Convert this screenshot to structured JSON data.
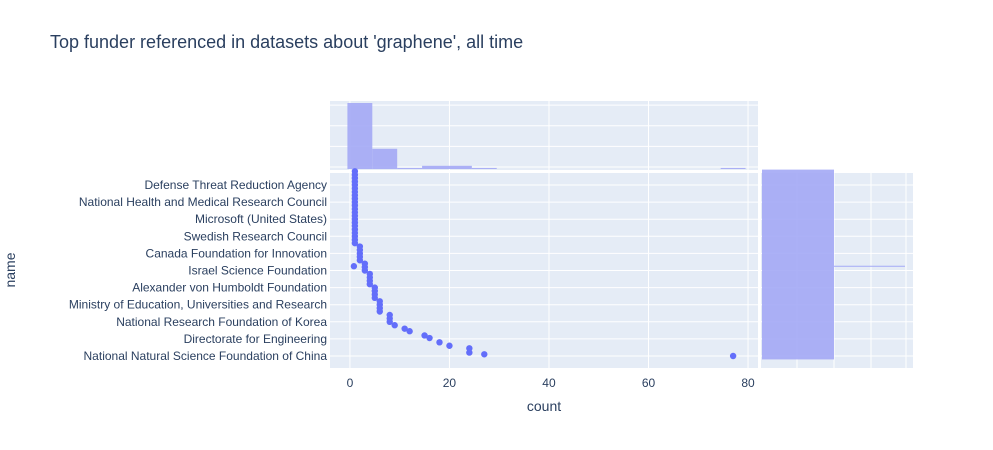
{
  "title": "Top funder referenced in datasets about 'graphene', all time",
  "colors": {
    "plot_bg": "#e5ecf6",
    "grid": "#ffffff",
    "marker": "#636efa",
    "hist": "#a3a9f5",
    "text": "#2a3f5f"
  },
  "chart_data": {
    "type": "scatter",
    "title": "Top funder referenced in datasets about 'graphene', all time",
    "xlabel": "count",
    "ylabel": "name",
    "xlim": [
      -4,
      82
    ],
    "x_ticks": [
      0,
      20,
      40,
      60,
      80
    ],
    "grid": true,
    "y_tick_labels": [
      "National Natural Science Foundation of China",
      "Directorate for Engineering",
      "National Research Foundation of Korea",
      "Ministry of Education, Universities and Research",
      "Alexander von Humboldt Foundation",
      "Israel Science Foundation",
      "Canada Foundation for Innovation",
      "Swedish Research Council",
      "Microsoft (United States)",
      "National Health and Medical Research Council",
      "Defense Threat Reduction Agency"
    ],
    "points": [
      {
        "x": 77,
        "y": 0
      },
      {
        "x": 27,
        "y": 0.1
      },
      {
        "x": 24,
        "y": 0.2
      },
      {
        "x": 24,
        "y": 0.45
      },
      {
        "x": 20,
        "y": 0.6
      },
      {
        "x": 18,
        "y": 0.8
      },
      {
        "x": 16,
        "y": 1.05
      },
      {
        "x": 15,
        "y": 1.2
      },
      {
        "x": 12,
        "y": 1.45
      },
      {
        "x": 11,
        "y": 1.6
      },
      {
        "x": 9,
        "y": 1.8
      },
      {
        "x": 8,
        "y": 2.0
      },
      {
        "x": 8,
        "y": 2.2
      },
      {
        "x": 8,
        "y": 2.4
      },
      {
        "x": 6,
        "y": 2.6
      },
      {
        "x": 6,
        "y": 2.8
      },
      {
        "x": 6,
        "y": 3.0
      },
      {
        "x": 6,
        "y": 3.2
      },
      {
        "x": 5,
        "y": 3.4
      },
      {
        "x": 5,
        "y": 3.6
      },
      {
        "x": 5,
        "y": 3.8
      },
      {
        "x": 5,
        "y": 4.0
      },
      {
        "x": 4,
        "y": 4.2
      },
      {
        "x": 4,
        "y": 4.4
      },
      {
        "x": 4,
        "y": 4.6
      },
      {
        "x": 4,
        "y": 4.8
      },
      {
        "x": 3,
        "y": 5.0
      },
      {
        "x": 3,
        "y": 5.2
      },
      {
        "x": 3,
        "y": 5.4
      },
      {
        "x": 0.8,
        "y": 5.25
      },
      {
        "x": 2,
        "y": 5.6
      },
      {
        "x": 2,
        "y": 5.8
      },
      {
        "x": 2,
        "y": 6.0
      },
      {
        "x": 2,
        "y": 6.2
      },
      {
        "x": 2,
        "y": 6.4
      },
      {
        "x": 1,
        "y": 6.6
      },
      {
        "x": 1,
        "y": 6.8
      },
      {
        "x": 1,
        "y": 7.0
      },
      {
        "x": 1,
        "y": 7.2
      },
      {
        "x": 1,
        "y": 7.4
      },
      {
        "x": 1,
        "y": 7.6
      },
      {
        "x": 1,
        "y": 7.8
      },
      {
        "x": 1,
        "y": 8.0
      },
      {
        "x": 1,
        "y": 8.2
      },
      {
        "x": 1,
        "y": 8.4
      },
      {
        "x": 1,
        "y": 8.6
      },
      {
        "x": 1,
        "y": 8.8
      },
      {
        "x": 1,
        "y": 9.0
      },
      {
        "x": 1,
        "y": 9.2
      },
      {
        "x": 1,
        "y": 9.4
      },
      {
        "x": 1,
        "y": 9.6
      },
      {
        "x": 1,
        "y": 9.8
      },
      {
        "x": 1,
        "y": 10.0
      },
      {
        "x": 1,
        "y": 10.2
      },
      {
        "x": 1,
        "y": 10.4
      },
      {
        "x": 1,
        "y": 10.6
      },
      {
        "x": 1,
        "y": 10.8
      }
    ],
    "top_histogram": {
      "bins": [
        {
          "x0": 0,
          "x1": 5,
          "count": 62
        },
        {
          "x0": 5,
          "x1": 10,
          "count": 19
        },
        {
          "x0": 10,
          "x1": 15,
          "count": 1
        },
        {
          "x0": 15,
          "x1": 25,
          "count": 3
        },
        {
          "x0": 25,
          "x1": 30,
          "count": 1
        },
        {
          "x0": 75,
          "x1": 80,
          "count": 1
        }
      ]
    },
    "right_histogram": {
      "bins": [
        {
          "y0": -0.2,
          "y1": 10.9,
          "count": 1
        }
      ],
      "line_at": 5.25
    }
  }
}
